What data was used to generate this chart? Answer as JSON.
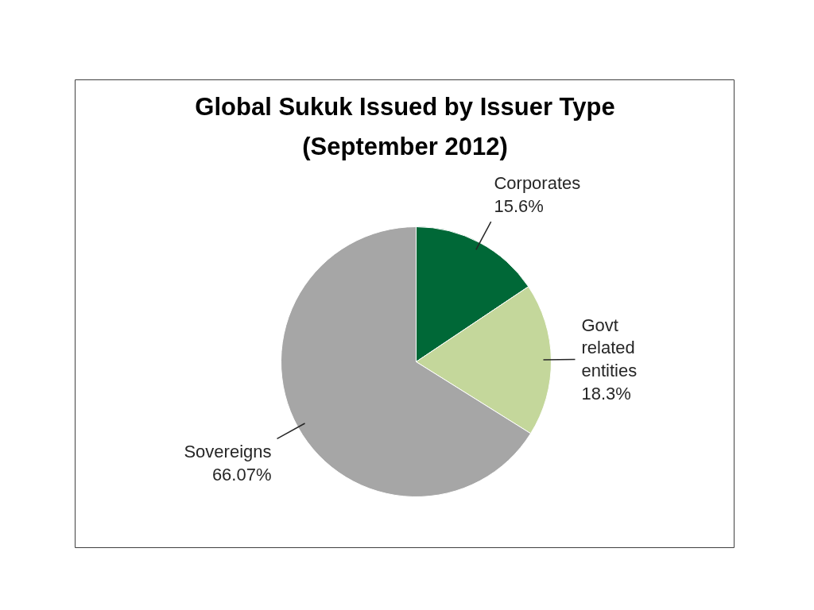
{
  "chart_data": {
    "type": "pie",
    "title": "Global Sukuk Issued by Issuer Type",
    "subtitle": "(September 2012)",
    "categories": [
      "Corporates",
      "Govt related entities",
      "Sovereigns"
    ],
    "values": [
      15.6,
      18.3,
      66.07
    ],
    "colors": [
      "#006837",
      "#c4d79b",
      "#a6a6a6"
    ],
    "value_labels": [
      "15.6%",
      "18.3%",
      "66.07%"
    ]
  }
}
